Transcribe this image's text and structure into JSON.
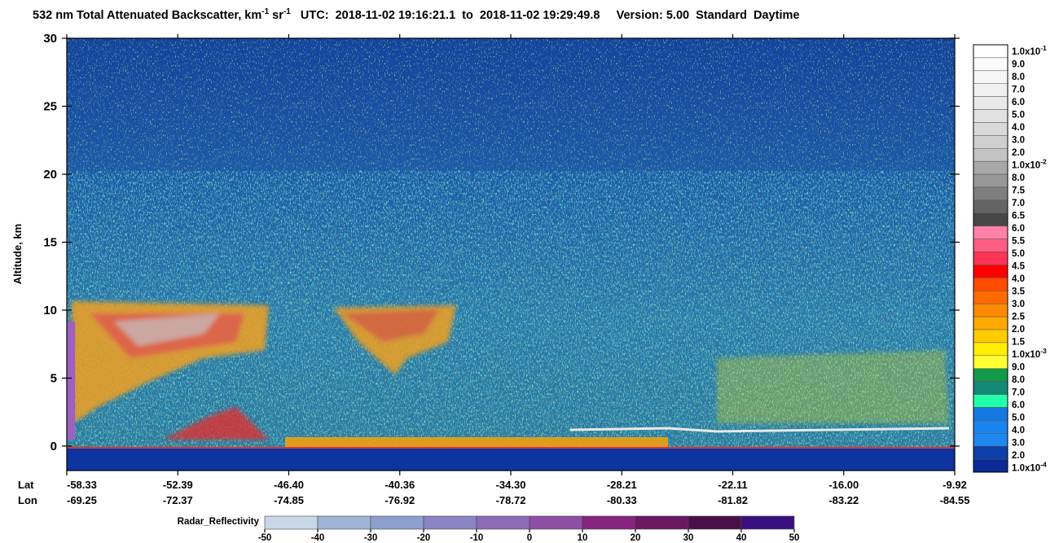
{
  "chart_data": {
    "type": "lidar_profile",
    "title": {
      "text": "532 nm Total Attenuated Backscatter, km",
      "exp1": "-1",
      "unit2": " sr",
      "exp2": "-1"
    },
    "subtitle": "UTC:  2018-11-02 19:16:21.1  to  2018-11-02 19:29:49.8     Version: 5.00  Standard  Daytime",
    "y_label": "Altitude, km",
    "ylim": [
      -1.8,
      30
    ],
    "yticks": [
      0,
      5,
      10,
      15,
      20,
      25,
      30
    ],
    "lat_label": "Lat",
    "lon_label": "Lon",
    "lat": [
      "-58.33",
      "-52.39",
      "-46.40",
      "-40.36",
      "-34.30",
      "-28.21",
      "-22.11",
      "-16.00",
      "-9.92"
    ],
    "lon": [
      "-69.25",
      "-72.37",
      "-74.85",
      "-76.92",
      "-78.72",
      "-80.33",
      "-81.82",
      "-83.22",
      "-84.55"
    ],
    "colorbar": {
      "labels": [
        {
          "text": "1.0x10",
          "exp": "-1"
        },
        "9.0",
        "8.0",
        "7.0",
        "6.0",
        "5.0",
        "4.0",
        "3.0",
        "2.0",
        {
          "text": "1.0x10",
          "exp": "-2"
        },
        "8.0",
        "7.5",
        "7.0",
        "6.5",
        "6.0",
        "5.5",
        "5.0",
        "4.5",
        "4.0",
        "3.5",
        "3.0",
        "2.5",
        "2.0",
        "1.5",
        {
          "text": "1.0x10",
          "exp": "-3"
        },
        "9.0",
        "8.0",
        "7.0",
        "6.0",
        "5.0",
        "4.0",
        "3.0",
        "2.0",
        {
          "text": "1.0x10",
          "exp": "-4"
        }
      ],
      "colors": [
        "#ffffff",
        "#fbfbfb",
        "#f6f6f6",
        "#f0f0f0",
        "#e9e9e9",
        "#e1e1e1",
        "#d9d9d9",
        "#cfcfcf",
        "#c3c3c3",
        "#a8a8a8",
        "#989898",
        "#7f7f7f",
        "#646464",
        "#474747",
        "#ff80a8",
        "#ff5c82",
        "#ff3355",
        "#ff0000",
        "#ff4a00",
        "#ff6a00",
        "#ff8a00",
        "#ffaa00",
        "#ffcc00",
        "#ffee00",
        "#ffff33",
        "#129a4a",
        "#138877",
        "#22ffaa",
        "#1478e0",
        "#1a84ee",
        "#1e88f0",
        "#0d3fa8",
        "#0a2a96"
      ]
    },
    "radar": {
      "label": "Radar_Reflectivity",
      "ticks": [
        -50,
        -40,
        -30,
        -20,
        -10,
        0,
        10,
        20,
        30,
        40,
        50
      ],
      "colors": [
        "#c8d6e8",
        "#9fb4d4",
        "#8d9fcc",
        "#8a84c4",
        "#8e6ab8",
        "#8f4ea6",
        "#86237f",
        "#6a1860",
        "#4a0f48",
        "#3a1080"
      ]
    }
  }
}
